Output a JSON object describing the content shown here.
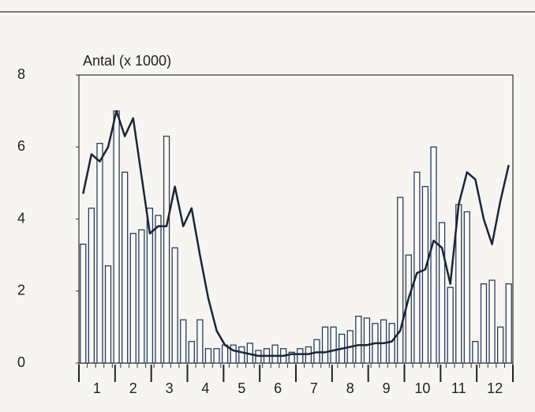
{
  "chart_data": {
    "type": "bar",
    "y_axis_label": "Antal (x 1000)",
    "month_labels": [
      1,
      2,
      3,
      4,
      5,
      6,
      7,
      8,
      9,
      10,
      11,
      12
    ],
    "categories": [
      null,
      null,
      null,
      null,
      null,
      null,
      null,
      null,
      null,
      null,
      null,
      null,
      null,
      null,
      null,
      null,
      null,
      null,
      null,
      null,
      null,
      null,
      null,
      null,
      null,
      null,
      null,
      null,
      null,
      null,
      null,
      null,
      null,
      null,
      null,
      null,
      null,
      null,
      null,
      null,
      null,
      null,
      null,
      null,
      null,
      null,
      null,
      null,
      null,
      null,
      null,
      null
    ],
    "series": [
      {
        "type": "bar",
        "color": "#2a3d5c",
        "values": [
          3.3,
          4.3,
          6.1,
          2.7,
          7.0,
          5.3,
          3.6,
          3.7,
          4.3,
          4.1,
          6.3,
          3.2,
          1.2,
          0.6,
          1.2,
          0.4,
          0.4,
          0.5,
          0.5,
          0.45,
          0.55,
          0.35,
          0.4,
          0.5,
          0.4,
          0.3,
          0.4,
          0.45,
          0.65,
          1.0,
          1.0,
          0.8,
          0.9,
          1.3,
          1.25,
          1.1,
          1.2,
          1.1,
          4.6,
          3.0,
          5.3,
          4.9,
          6.0,
          3.9,
          2.1,
          4.4,
          4.2,
          0.6,
          2.2,
          2.3,
          1.0,
          2.2
        ]
      },
      {
        "type": "line",
        "color": "#1a2636",
        "values": [
          4.7,
          5.8,
          5.6,
          6.0,
          7.0,
          6.3,
          6.8,
          5.2,
          3.6,
          3.8,
          3.8,
          4.9,
          3.8,
          4.3,
          3.0,
          1.8,
          0.9,
          0.5,
          0.35,
          0.3,
          0.25,
          0.2,
          0.2,
          0.2,
          0.2,
          0.25,
          0.25,
          0.25,
          0.3,
          0.3,
          0.35,
          0.4,
          0.45,
          0.5,
          0.5,
          0.55,
          0.55,
          0.6,
          0.9,
          1.8,
          2.5,
          2.6,
          3.4,
          3.2,
          2.2,
          4.4,
          5.3,
          5.1,
          4.0,
          3.3,
          4.5,
          5.5
        ]
      }
    ],
    "ylim": [
      0,
      8
    ],
    "yticks": [
      0,
      2,
      4,
      6,
      8
    ]
  }
}
